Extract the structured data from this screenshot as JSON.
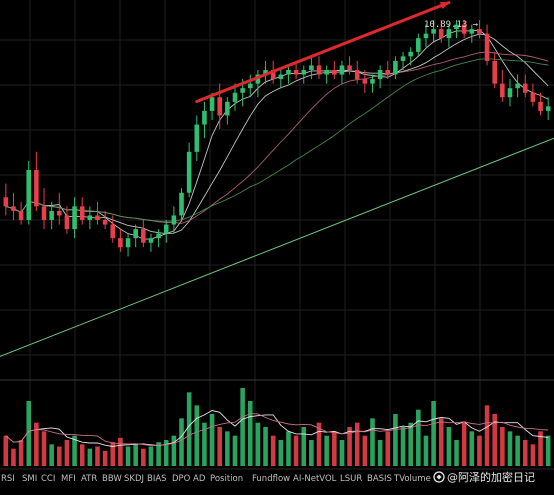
{
  "chart_data": {
    "type": "candlestick",
    "title": "",
    "grid": true,
    "colors": {
      "up": "#2fbf71",
      "down": "#e8404a",
      "ma_fast": "#e6e6e6",
      "ma_mid": "#c86f86",
      "ma_slow": "#4f9e5c",
      "ma_long": "#6fc47a",
      "arrow": "#e0292c",
      "grid": "#1f1f1f",
      "background": "#000000",
      "volume_ma1": "#e6e6e6",
      "volume_ma2": "#c86f86"
    },
    "price_range": [
      3.0,
      10.7
    ],
    "high_label": "10.89.13 →",
    "candles": [
      [
        6.8,
        7.1,
        6.4,
        6.6
      ],
      [
        6.6,
        6.9,
        6.3,
        6.5
      ],
      [
        6.5,
        6.7,
        6.2,
        6.3
      ],
      [
        6.3,
        7.6,
        6.2,
        7.4
      ],
      [
        7.4,
        7.8,
        6.5,
        6.6
      ],
      [
        6.6,
        7.0,
        6.1,
        6.3
      ],
      [
        6.3,
        6.7,
        6.1,
        6.5
      ],
      [
        6.5,
        6.9,
        6.2,
        6.4
      ],
      [
        6.4,
        6.6,
        6.0,
        6.1
      ],
      [
        6.1,
        6.8,
        5.9,
        6.6
      ],
      [
        6.6,
        6.8,
        6.2,
        6.3
      ],
      [
        6.3,
        6.6,
        6.1,
        6.4
      ],
      [
        6.4,
        6.7,
        6.2,
        6.3
      ],
      [
        6.3,
        6.5,
        6.1,
        6.2
      ],
      [
        6.2,
        6.4,
        5.8,
        5.9
      ],
      [
        5.9,
        6.1,
        5.6,
        5.7
      ],
      [
        5.7,
        6.0,
        5.5,
        5.9
      ],
      [
        5.9,
        6.2,
        5.7,
        6.1
      ],
      [
        6.1,
        6.3,
        5.7,
        5.8
      ],
      [
        5.8,
        6.0,
        5.6,
        5.9
      ],
      [
        5.9,
        6.1,
        5.7,
        6.0
      ],
      [
        6.0,
        6.3,
        5.8,
        6.2
      ],
      [
        6.2,
        6.6,
        6.0,
        6.4
      ],
      [
        6.4,
        7.0,
        6.3,
        6.9
      ],
      [
        6.9,
        8.0,
        6.8,
        7.8
      ],
      [
        7.8,
        8.6,
        7.6,
        8.4
      ],
      [
        8.4,
        8.9,
        8.1,
        8.7
      ],
      [
        8.7,
        9.1,
        8.5,
        9.0
      ],
      [
        9.0,
        9.3,
        8.3,
        8.6
      ],
      [
        8.6,
        9.0,
        8.4,
        8.9
      ],
      [
        8.9,
        9.3,
        8.7,
        9.1
      ],
      [
        9.1,
        9.4,
        8.8,
        9.2
      ],
      [
        9.2,
        9.5,
        9.0,
        9.3
      ],
      [
        9.3,
        9.6,
        9.0,
        9.5
      ],
      [
        9.5,
        9.8,
        9.3,
        9.6
      ],
      [
        9.6,
        9.8,
        9.3,
        9.4
      ],
      [
        9.4,
        9.6,
        9.2,
        9.5
      ],
      [
        9.5,
        9.7,
        9.3,
        9.6
      ],
      [
        9.6,
        9.8,
        9.4,
        9.5
      ],
      [
        9.5,
        9.7,
        9.3,
        9.6
      ],
      [
        9.6,
        9.9,
        9.4,
        9.7
      ],
      [
        9.7,
        9.9,
        9.4,
        9.5
      ],
      [
        9.5,
        9.7,
        9.3,
        9.6
      ],
      [
        9.6,
        9.8,
        9.4,
        9.5
      ],
      [
        9.5,
        9.8,
        9.3,
        9.7
      ],
      [
        9.7,
        9.9,
        9.5,
        9.6
      ],
      [
        9.6,
        9.8,
        9.3,
        9.4
      ],
      [
        9.4,
        9.6,
        9.1,
        9.3
      ],
      [
        9.3,
        9.5,
        9.1,
        9.4
      ],
      [
        9.4,
        9.7,
        9.2,
        9.6
      ],
      [
        9.6,
        9.8,
        9.4,
        9.5
      ],
      [
        9.5,
        9.9,
        9.4,
        9.8
      ],
      [
        9.8,
        10.0,
        9.6,
        9.9
      ],
      [
        9.9,
        10.1,
        9.7,
        10.0
      ],
      [
        10.0,
        10.4,
        9.9,
        10.3
      ],
      [
        10.3,
        10.6,
        10.1,
        10.4
      ],
      [
        10.4,
        10.7,
        10.2,
        10.5
      ],
      [
        10.5,
        10.7,
        10.2,
        10.3
      ],
      [
        10.3,
        10.6,
        10.1,
        10.5
      ],
      [
        10.5,
        10.7,
        10.3,
        10.6
      ],
      [
        10.6,
        10.7,
        10.3,
        10.4
      ],
      [
        10.4,
        10.6,
        10.2,
        10.5
      ],
      [
        10.5,
        10.7,
        10.3,
        10.4
      ],
      [
        10.4,
        10.6,
        9.7,
        9.8
      ],
      [
        9.8,
        10.0,
        9.2,
        9.3
      ],
      [
        9.3,
        9.6,
        8.9,
        9.0
      ],
      [
        9.0,
        9.4,
        8.8,
        9.2
      ],
      [
        9.2,
        9.5,
        9.0,
        9.3
      ],
      [
        9.3,
        9.5,
        9.0,
        9.1
      ],
      [
        9.1,
        9.3,
        8.8,
        8.9
      ],
      [
        8.9,
        9.1,
        8.6,
        8.7
      ],
      [
        8.7,
        9.0,
        8.5,
        8.8
      ]
    ],
    "volumes": [
      14,
      8,
      12,
      30,
      20,
      16,
      10,
      9,
      12,
      14,
      10,
      8,
      9,
      7,
      11,
      13,
      9,
      10,
      8,
      9,
      11,
      12,
      14,
      22,
      34,
      28,
      20,
      24,
      18,
      16,
      14,
      36,
      30,
      20,
      18,
      14,
      12,
      16,
      14,
      18,
      12,
      20,
      14,
      16,
      12,
      18,
      20,
      14,
      22,
      12,
      16,
      24,
      18,
      20,
      26,
      14,
      30,
      22,
      18,
      12,
      20,
      16,
      14,
      28,
      24,
      18,
      16,
      14,
      12,
      10,
      16,
      14
    ],
    "indicator_tabs": [
      "RSI",
      "SMI",
      "CCI",
      "MFI",
      "ATR",
      "BBW",
      "SKDJ",
      "BIAS",
      "DPO",
      "AD",
      "Position",
      "Fundflow",
      "AI-NetVOL",
      "LSUR",
      "BASIS",
      "TVolume"
    ]
  },
  "watermark": {
    "icon": "coin-logo-icon",
    "text": "@阿泽的加密日记"
  }
}
